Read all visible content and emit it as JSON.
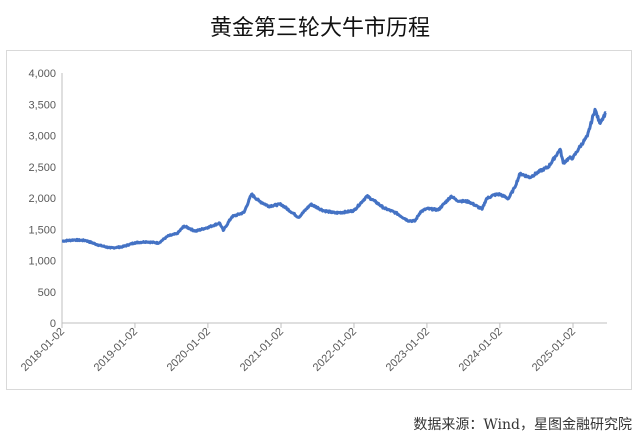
{
  "title": "黄金第三轮大牛市历程",
  "source": "数据来源：Wind，星图金融研究院",
  "chart_data": {
    "type": "line",
    "title": "黄金第三轮大牛市历程",
    "xlabel": "",
    "ylabel": "",
    "ylim": [
      0,
      4000
    ],
    "yticks": [
      "0",
      "500",
      "1,000",
      "1,500",
      "2,000",
      "2,500",
      "3,000",
      "3,500",
      "4,000"
    ],
    "yticks_values": [
      0,
      500,
      1000,
      1500,
      2000,
      2500,
      3000,
      3500,
      4000
    ],
    "xticks": [
      "2018-01-02",
      "2019-01-02",
      "2020-01-02",
      "2021-01-02",
      "2022-01-02",
      "2023-01-02",
      "2024-01-02",
      "2025-01-02"
    ],
    "grid": false,
    "legend": "none",
    "line_color": "#4472C4",
    "series": [
      {
        "name": "",
        "x": [
          "2018-01-02",
          "2018-03-01",
          "2018-05-01",
          "2018-07-01",
          "2018-09-01",
          "2018-11-01",
          "2019-01-02",
          "2019-03-01",
          "2019-05-01",
          "2019-06-15",
          "2019-08-01",
          "2019-09-05",
          "2019-11-01",
          "2020-01-02",
          "2020-03-01",
          "2020-03-19",
          "2020-05-01",
          "2020-07-01",
          "2020-08-07",
          "2020-09-15",
          "2020-11-01",
          "2021-01-02",
          "2021-03-31",
          "2021-05-31",
          "2021-08-01",
          "2021-10-01",
          "2021-12-01",
          "2022-01-02",
          "2022-03-08",
          "2022-04-15",
          "2022-06-01",
          "2022-08-01",
          "2022-09-28",
          "2022-11-03",
          "2022-12-01",
          "2023-01-02",
          "2023-02-28",
          "2023-05-04",
          "2023-06-01",
          "2023-08-01",
          "2023-10-05",
          "2023-10-27",
          "2023-12-04",
          "2024-01-02",
          "2024-02-14",
          "2024-03-15",
          "2024-04-12",
          "2024-06-01",
          "2024-07-15",
          "2024-09-01",
          "2024-10-30",
          "2024-11-14",
          "2024-12-15",
          "2025-01-02",
          "2025-02-01",
          "2025-03-15",
          "2025-04-22",
          "2025-05-15",
          "2025-06-15"
        ],
        "values": [
          1310,
          1330,
          1320,
          1250,
          1200,
          1220,
          1285,
          1300,
          1280,
          1390,
          1430,
          1550,
          1470,
          1530,
          1600,
          1480,
          1700,
          1770,
          2060,
          1950,
          1870,
          1900,
          1690,
          1900,
          1800,
          1760,
          1780,
          1800,
          2030,
          1950,
          1840,
          1760,
          1640,
          1630,
          1780,
          1830,
          1810,
          2030,
          1960,
          1940,
          1820,
          1990,
          2050,
          2060,
          1990,
          2160,
          2390,
          2330,
          2420,
          2500,
          2780,
          2560,
          2640,
          2640,
          2800,
          2990,
          3420,
          3200,
          3360
        ]
      }
    ]
  }
}
